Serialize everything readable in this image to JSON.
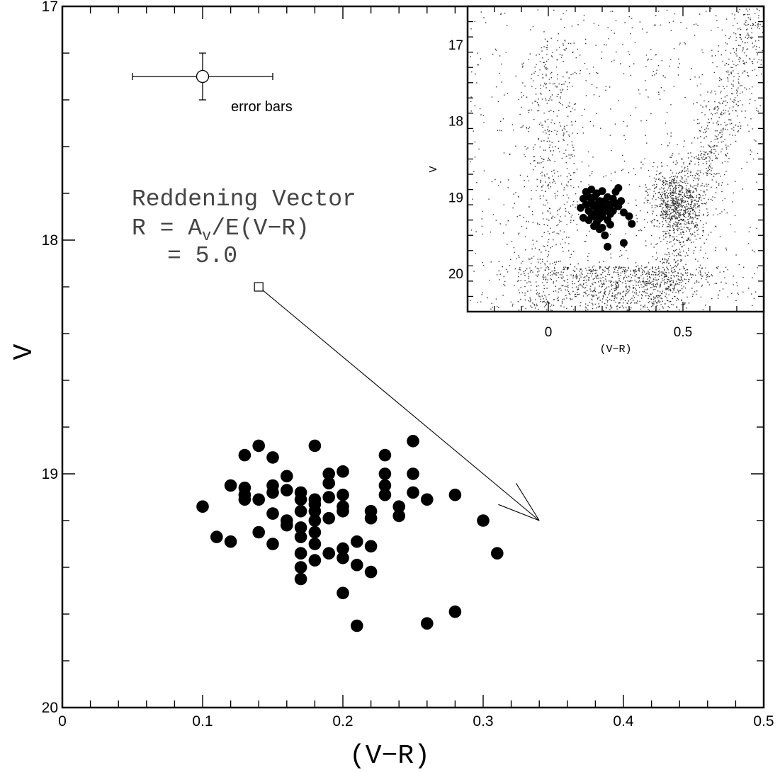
{
  "chart_data": [
    {
      "type": "scatter",
      "xlabel": "(V−R)",
      "ylabel": "V",
      "xlim": [
        0,
        0.5
      ],
      "ylim": [
        20,
        17
      ],
      "y_inverted": true,
      "x_ticks": [
        "0",
        "0.1",
        "0.2",
        "0.3",
        "0.4",
        "0.5"
      ],
      "y_ticks": [
        "17",
        "18",
        "19",
        "20"
      ],
      "x_tick_values": [
        0,
        0.1,
        0.2,
        0.3,
        0.4,
        0.5
      ],
      "y_tick_values": [
        17,
        18,
        19,
        20
      ],
      "grid": false,
      "points": [
        [
          0.1,
          19.14
        ],
        [
          0.11,
          19.27
        ],
        [
          0.12,
          19.05
        ],
        [
          0.12,
          19.29
        ],
        [
          0.13,
          18.92
        ],
        [
          0.13,
          19.06
        ],
        [
          0.13,
          19.09
        ],
        [
          0.13,
          19.11
        ],
        [
          0.14,
          18.88
        ],
        [
          0.14,
          19.11
        ],
        [
          0.14,
          19.25
        ],
        [
          0.15,
          18.93
        ],
        [
          0.15,
          19.05
        ],
        [
          0.15,
          19.08
        ],
        [
          0.15,
          19.17
        ],
        [
          0.15,
          19.3
        ],
        [
          0.16,
          19.01
        ],
        [
          0.16,
          19.07
        ],
        [
          0.16,
          19.2
        ],
        [
          0.16,
          19.22
        ],
        [
          0.17,
          19.08
        ],
        [
          0.17,
          19.11
        ],
        [
          0.17,
          19.16
        ],
        [
          0.17,
          19.23
        ],
        [
          0.17,
          19.27
        ],
        [
          0.17,
          19.34
        ],
        [
          0.17,
          19.4
        ],
        [
          0.17,
          19.45
        ],
        [
          0.18,
          18.88
        ],
        [
          0.18,
          19.11
        ],
        [
          0.18,
          19.13
        ],
        [
          0.18,
          19.16
        ],
        [
          0.18,
          19.2
        ],
        [
          0.18,
          19.25
        ],
        [
          0.18,
          19.3
        ],
        [
          0.18,
          19.37
        ],
        [
          0.19,
          19.0
        ],
        [
          0.19,
          19.04
        ],
        [
          0.19,
          19.1
        ],
        [
          0.19,
          19.19
        ],
        [
          0.19,
          19.34
        ],
        [
          0.2,
          18.99
        ],
        [
          0.2,
          19.09
        ],
        [
          0.2,
          19.14
        ],
        [
          0.2,
          19.16
        ],
        [
          0.2,
          19.32
        ],
        [
          0.2,
          19.36
        ],
        [
          0.2,
          19.51
        ],
        [
          0.21,
          19.29
        ],
        [
          0.21,
          19.39
        ],
        [
          0.21,
          19.65
        ],
        [
          0.22,
          19.16
        ],
        [
          0.22,
          19.19
        ],
        [
          0.22,
          19.31
        ],
        [
          0.22,
          19.42
        ],
        [
          0.23,
          18.92
        ],
        [
          0.23,
          19.0
        ],
        [
          0.23,
          19.05
        ],
        [
          0.23,
          19.09
        ],
        [
          0.24,
          19.14
        ],
        [
          0.24,
          19.18
        ],
        [
          0.25,
          18.86
        ],
        [
          0.25,
          19.0
        ],
        [
          0.25,
          19.08
        ],
        [
          0.26,
          19.11
        ],
        [
          0.26,
          19.64
        ],
        [
          0.28,
          19.09
        ],
        [
          0.28,
          19.59
        ],
        [
          0.3,
          19.2
        ],
        [
          0.31,
          19.34
        ]
      ],
      "annotations": {
        "reddening_title": "Reddening Vector",
        "reddening_eq_R": "R = A",
        "reddening_eq_sub": "v",
        "reddening_eq_rest": "/E(V−R)",
        "reddening_value": "= 5.0",
        "reddening_vector_start": [
          0.14,
          18.2
        ],
        "reddening_vector_end": [
          0.34,
          19.2
        ],
        "error_bar_label": "error bars",
        "error_bar_center": [
          0.1,
          17.3
        ],
        "error_bar_x_halfwidth": 0.05,
        "error_bar_y_halfwidth": 0.1
      }
    },
    {
      "type": "scatter",
      "role": "inset",
      "xlabel": "(V−R)",
      "ylabel": "V",
      "xlim": [
        -0.3,
        0.8
      ],
      "ylim": [
        20.5,
        16.5
      ],
      "y_inverted": true,
      "x_ticks": [
        "0",
        "0.5"
      ],
      "y_ticks": [
        "17",
        "18",
        "19",
        "20"
      ],
      "x_tick_values": [
        0,
        0.5
      ],
      "y_tick_values": [
        17,
        18,
        19,
        20
      ],
      "background_field_stars": "dense scatter of small dots (field population)",
      "highlighted_points": [
        [
          0.12,
          19.14
        ],
        [
          0.13,
          19.02
        ],
        [
          0.13,
          19.27
        ],
        [
          0.14,
          18.93
        ],
        [
          0.14,
          19.1
        ],
        [
          0.15,
          19.0
        ],
        [
          0.15,
          19.18
        ],
        [
          0.15,
          19.3
        ],
        [
          0.16,
          18.9
        ],
        [
          0.16,
          19.08
        ],
        [
          0.16,
          19.22
        ],
        [
          0.17,
          19.0
        ],
        [
          0.17,
          19.12
        ],
        [
          0.17,
          19.25
        ],
        [
          0.17,
          19.38
        ],
        [
          0.18,
          18.95
        ],
        [
          0.18,
          19.1
        ],
        [
          0.18,
          19.2
        ],
        [
          0.18,
          19.33
        ],
        [
          0.19,
          19.05
        ],
        [
          0.19,
          19.16
        ],
        [
          0.19,
          19.28
        ],
        [
          0.2,
          18.92
        ],
        [
          0.2,
          19.1
        ],
        [
          0.2,
          19.25
        ],
        [
          0.2,
          19.4
        ],
        [
          0.21,
          19.05
        ],
        [
          0.21,
          19.18
        ],
        [
          0.21,
          19.5
        ],
        [
          0.22,
          19.0
        ],
        [
          0.22,
          19.15
        ],
        [
          0.22,
          19.3
        ],
        [
          0.22,
          19.65
        ],
        [
          0.23,
          19.1
        ],
        [
          0.23,
          19.22
        ],
        [
          0.24,
          19.02
        ],
        [
          0.24,
          19.18
        ],
        [
          0.25,
          18.93
        ],
        [
          0.25,
          19.08
        ],
        [
          0.26,
          19.12
        ],
        [
          0.27,
          19.05
        ],
        [
          0.28,
          19.2
        ],
        [
          0.28,
          19.6
        ],
        [
          0.3,
          19.25
        ],
        [
          0.31,
          19.35
        ],
        [
          0.26,
          18.88
        ],
        [
          0.19,
          19.42
        ],
        [
          0.23,
          19.36
        ]
      ]
    }
  ]
}
